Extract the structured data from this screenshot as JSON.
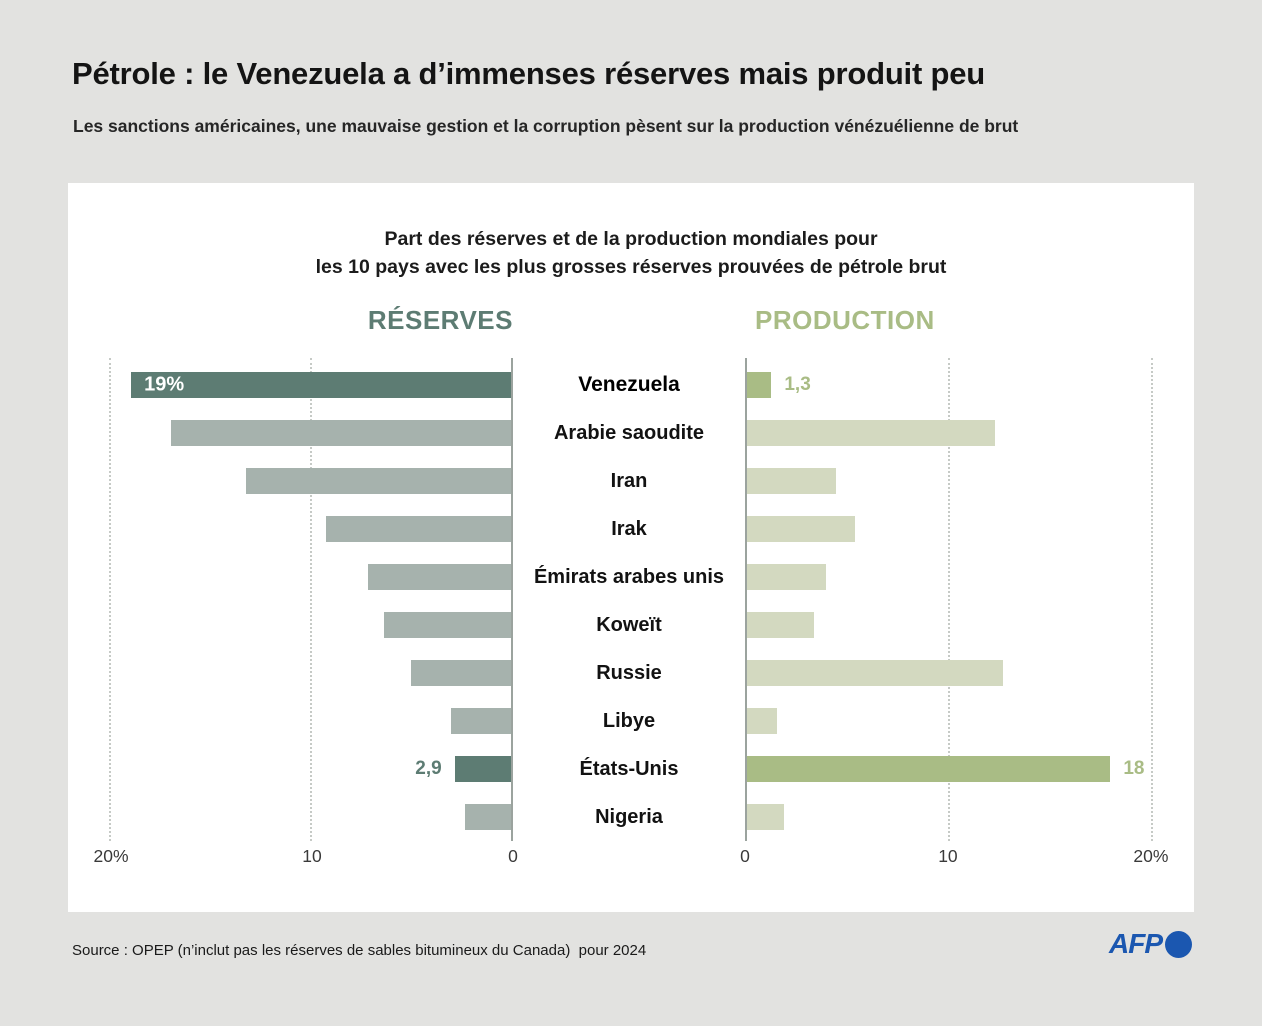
{
  "header": {
    "title": "Pétrole : le Venezuela a d’immenses réserves mais produit peu",
    "subtitle": "Les sanctions américaines, une mauvaise gestion et la corruption pèsent sur la production vénézuélienne de brut"
  },
  "card": {
    "title_line1": "Part des réserves et de la production mondiales pour",
    "title_line2": "les 10 pays avec les plus grosses réserves prouvées de pétrole brut"
  },
  "chart_data": {
    "type": "bar",
    "variant": "bidirectional-horizontal",
    "title": "Part des réserves et de la production mondiales pour les 10 pays avec les plus grosses réserves prouvées de pétrole brut",
    "units": "%",
    "axis_max": 20.3,
    "grid": "dotted vertical at 10 and 20, solid line at 0",
    "axes": {
      "left": {
        "name": "RÉSERVES",
        "direction": "right-to-left",
        "xlim": [
          0,
          20.3
        ],
        "ticks": [
          {
            "value": 20,
            "label": "20%"
          },
          {
            "value": 10,
            "label": "10"
          },
          {
            "value": 0,
            "label": "0"
          }
        ]
      },
      "right": {
        "name": "PRODUCTION",
        "direction": "left-to-right",
        "xlim": [
          0,
          20.3
        ],
        "ticks": [
          {
            "value": 0,
            "label": "0"
          },
          {
            "value": 10,
            "label": "10"
          },
          {
            "value": 20,
            "label": "20%"
          }
        ]
      }
    },
    "highlighted_countries": [
      "Venezuela",
      "États-Unis"
    ],
    "rows": [
      {
        "country": "Venezuela",
        "reserves": 19,
        "production": 1.3,
        "reserves_label": "19%",
        "reserves_label_pos": "inside",
        "production_label": "1,3",
        "highlight": true,
        "bold": true
      },
      {
        "country": "Arabie saoudite",
        "reserves": 17,
        "production": 12.3
      },
      {
        "country": "Iran",
        "reserves": 13.3,
        "production": 4.5
      },
      {
        "country": "Irak",
        "reserves": 9.3,
        "production": 5.4
      },
      {
        "country": "Émirats arabes unis",
        "reserves": 7.2,
        "production": 4
      },
      {
        "country": "Koweït",
        "reserves": 6.4,
        "production": 3.4
      },
      {
        "country": "Russie",
        "reserves": 5.1,
        "production": 12.7
      },
      {
        "country": "Libye",
        "reserves": 3.1,
        "production": 1.6
      },
      {
        "country": "États-Unis",
        "reserves": 2.9,
        "production": 18,
        "reserves_label": "2,9",
        "reserves_label_pos": "outside",
        "production_label": "18",
        "highlight": true
      },
      {
        "country": "Nigeria",
        "reserves": 2.4,
        "production": 1.9
      }
    ]
  },
  "colors": {
    "page_background": "#e2e2e0",
    "card_background": "#ffffff",
    "reserves_highlight": "#5d7c73",
    "reserves_normal": "#a6b2ad",
    "production_highlight": "#a9bc85",
    "production_normal": "#d3d9c0",
    "afp_blue": "#1b57b0"
  },
  "footer": {
    "source": "Source : OPEP (n’inclut pas les réserves de sables bitumineux du Canada)  pour 2024",
    "logo_text": "AFP"
  }
}
